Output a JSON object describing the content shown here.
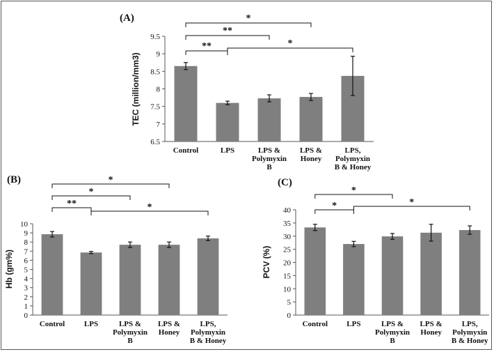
{
  "chart_data": [
    {
      "panel": "(A)",
      "type": "bar",
      "ylabel": "TEC (million/mm3)",
      "categories": [
        [
          "Control"
        ],
        [
          "LPS"
        ],
        [
          "LPS &",
          "Polymyxin",
          "B"
        ],
        [
          "LPS &",
          "Honey"
        ],
        [
          "LPS,",
          "Polymyxin",
          "B & Honey"
        ]
      ],
      "values": [
        8.65,
        7.6,
        7.73,
        7.77,
        8.37
      ],
      "errors": [
        0.1,
        0.05,
        0.1,
        0.1,
        0.56
      ],
      "ylim": [
        6.5,
        9.5
      ],
      "yticks": [
        "6.5",
        "7",
        "7.5",
        "8",
        "8.5",
        "9",
        "9.5"
      ],
      "significance": [
        {
          "from": 0,
          "to": 1,
          "label": "**"
        },
        {
          "from": 0,
          "to": 2,
          "label": "**"
        },
        {
          "from": 0,
          "to": 3,
          "label": "*"
        },
        {
          "from": 1,
          "to": 4,
          "label": "*"
        }
      ]
    },
    {
      "panel": "(B)",
      "type": "bar",
      "ylabel": "Hb (gm%)",
      "categories": [
        [
          "Control"
        ],
        [
          "LPS"
        ],
        [
          "LPS &",
          "Polymyxin",
          "B"
        ],
        [
          "LPS &",
          "Honey"
        ],
        [
          "LPS,",
          "Polymyxin",
          "B & Honey"
        ]
      ],
      "values": [
        8.85,
        6.85,
        7.7,
        7.7,
        8.4
      ],
      "errors": [
        0.3,
        0.12,
        0.3,
        0.3,
        0.25
      ],
      "ylim": [
        0,
        10
      ],
      "yticks": [
        "0",
        "1",
        "2",
        "3",
        "4",
        "5",
        "6",
        "7",
        "8",
        "9",
        "10"
      ],
      "significance": [
        {
          "from": 0,
          "to": 1,
          "label": "**"
        },
        {
          "from": 0,
          "to": 2,
          "label": "*"
        },
        {
          "from": 0,
          "to": 3,
          "label": "*"
        },
        {
          "from": 1,
          "to": 4,
          "label": "*"
        }
      ]
    },
    {
      "panel": "(C)",
      "type": "bar",
      "ylabel": "PCV (%)",
      "categories": [
        [
          "Control"
        ],
        [
          "LPS"
        ],
        [
          "LPS &",
          "Polymyxin",
          "B"
        ],
        [
          "LPS &",
          "Honey"
        ],
        [
          "LPS,",
          "Polymyxin",
          "B & Honey"
        ]
      ],
      "values": [
        33.3,
        27.0,
        29.9,
        31.3,
        32.3
      ],
      "errors": [
        1.2,
        1.0,
        1.1,
        3.2,
        1.6
      ],
      "ylim": [
        0,
        40
      ],
      "yticks": [
        "0",
        "5",
        "10",
        "15",
        "20",
        "25",
        "30",
        "35",
        "40"
      ],
      "significance": [
        {
          "from": 0,
          "to": 1,
          "label": "*"
        },
        {
          "from": 0,
          "to": 2,
          "label": "*"
        },
        {
          "from": 1,
          "to": 4,
          "label": "*"
        }
      ]
    }
  ]
}
